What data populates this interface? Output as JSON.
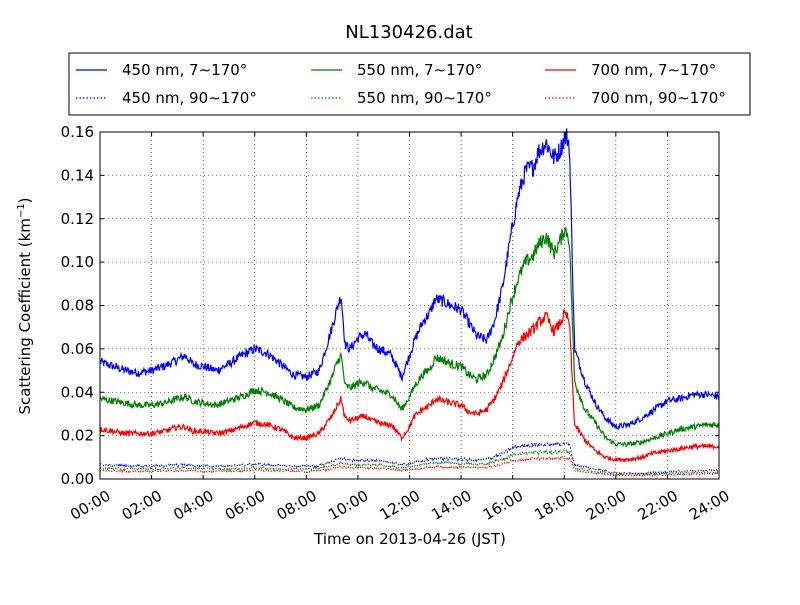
{
  "chart_data": {
    "type": "line",
    "title": "NL130426.dat",
    "xlabel": "Time on 2013-04-26 (JST)",
    "ylabel": "Scattering Coefficient (km",
    "ylabel_sup": "−1",
    "ylabel_close": ")",
    "xlim": [
      0,
      24
    ],
    "ylim": [
      0,
      0.16
    ],
    "grid": true,
    "legend_position": "top",
    "x_tick_values": [
      0,
      2,
      4,
      6,
      8,
      10,
      12,
      14,
      16,
      18,
      20,
      22,
      24
    ],
    "x_tick_labels": [
      "00:00",
      "02:00",
      "04:00",
      "06:00",
      "08:00",
      "10:00",
      "12:00",
      "14:00",
      "16:00",
      "18:00",
      "20:00",
      "22:00",
      "24:00"
    ],
    "y_tick_values": [
      0,
      0.02,
      0.04,
      0.06,
      0.08,
      0.1,
      0.12,
      0.14,
      0.16
    ],
    "y_tick_labels": [
      "0.00",
      "0.02",
      "0.04",
      "0.06",
      "0.08",
      "0.10",
      "0.12",
      "0.14",
      "0.16"
    ],
    "series": [
      {
        "name": "450 nm, 7∼170°",
        "color": "#0000ff",
        "style": "solid",
        "x": [
          0,
          0.5,
          1,
          1.5,
          2,
          2.5,
          3,
          3.3,
          3.6,
          4,
          4.5,
          5,
          5.5,
          6,
          6.5,
          7,
          7.5,
          8,
          8.5,
          8.8,
          9,
          9.2,
          9.35,
          9.5,
          9.7,
          10,
          10.3,
          10.5,
          10.8,
          11,
          11.3,
          11.7,
          12,
          12.2,
          12.5,
          12.8,
          13,
          13.3,
          13.6,
          14,
          14.3,
          14.6,
          15,
          15.3,
          15.6,
          15.9,
          16.2,
          16.5,
          16.8,
          17,
          17.3,
          17.6,
          17.85,
          18,
          18.1,
          18.2,
          18.4,
          18.8,
          19.2,
          19.6,
          20,
          20.5,
          21,
          21.5,
          22,
          22.5,
          23,
          23.5,
          24
        ],
        "y": [
          0.054,
          0.052,
          0.05,
          0.049,
          0.05,
          0.052,
          0.055,
          0.057,
          0.053,
          0.052,
          0.05,
          0.053,
          0.057,
          0.06,
          0.058,
          0.053,
          0.048,
          0.047,
          0.05,
          0.062,
          0.07,
          0.079,
          0.085,
          0.062,
          0.06,
          0.065,
          0.067,
          0.063,
          0.06,
          0.059,
          0.057,
          0.047,
          0.057,
          0.064,
          0.072,
          0.077,
          0.083,
          0.082,
          0.08,
          0.078,
          0.072,
          0.066,
          0.064,
          0.073,
          0.088,
          0.11,
          0.13,
          0.142,
          0.144,
          0.151,
          0.155,
          0.148,
          0.152,
          0.157,
          0.158,
          0.154,
          0.06,
          0.045,
          0.035,
          0.028,
          0.024,
          0.025,
          0.028,
          0.032,
          0.036,
          0.037,
          0.039,
          0.039,
          0.038
        ]
      },
      {
        "name": "550 nm, 7∼170°",
        "color": "#008000",
        "style": "solid",
        "x": [
          0,
          0.5,
          1,
          1.5,
          2,
          2.5,
          3,
          3.3,
          3.6,
          4,
          4.5,
          5,
          5.5,
          6,
          6.5,
          7,
          7.5,
          8,
          8.5,
          8.8,
          9,
          9.2,
          9.35,
          9.5,
          9.7,
          10,
          10.3,
          10.5,
          10.8,
          11,
          11.3,
          11.7,
          12,
          12.2,
          12.5,
          12.8,
          13,
          13.3,
          13.6,
          14,
          14.3,
          14.6,
          15,
          15.3,
          15.6,
          15.9,
          16.2,
          16.5,
          16.8,
          17,
          17.3,
          17.6,
          17.85,
          18,
          18.1,
          18.2,
          18.4,
          18.8,
          19.2,
          19.6,
          20,
          20.5,
          21,
          21.5,
          22,
          22.5,
          23,
          23.5,
          24
        ],
        "y": [
          0.037,
          0.036,
          0.035,
          0.034,
          0.034,
          0.035,
          0.037,
          0.038,
          0.036,
          0.035,
          0.034,
          0.036,
          0.038,
          0.041,
          0.04,
          0.037,
          0.033,
          0.032,
          0.034,
          0.042,
          0.047,
          0.054,
          0.057,
          0.043,
          0.042,
          0.044,
          0.045,
          0.042,
          0.041,
          0.04,
          0.039,
          0.032,
          0.038,
          0.043,
          0.048,
          0.051,
          0.056,
          0.055,
          0.053,
          0.052,
          0.048,
          0.046,
          0.048,
          0.056,
          0.065,
          0.08,
          0.092,
          0.1,
          0.103,
          0.108,
          0.112,
          0.104,
          0.11,
          0.115,
          0.114,
          0.11,
          0.045,
          0.032,
          0.026,
          0.019,
          0.016,
          0.016,
          0.017,
          0.019,
          0.021,
          0.023,
          0.024,
          0.025,
          0.025
        ]
      },
      {
        "name": "700 nm, 7∼170°",
        "color": "#ff0000",
        "style": "solid",
        "x": [
          0,
          0.5,
          1,
          1.5,
          2,
          2.5,
          3,
          3.3,
          3.6,
          4,
          4.5,
          5,
          5.5,
          6,
          6.5,
          7,
          7.5,
          8,
          8.5,
          8.8,
          9,
          9.2,
          9.35,
          9.5,
          9.7,
          10,
          10.3,
          10.5,
          10.8,
          11,
          11.3,
          11.7,
          12,
          12.2,
          12.5,
          12.8,
          13,
          13.3,
          13.6,
          14,
          14.3,
          14.6,
          15,
          15.3,
          15.6,
          15.9,
          16.2,
          16.5,
          16.8,
          17,
          17.3,
          17.6,
          17.85,
          18,
          18.1,
          18.2,
          18.4,
          18.8,
          19.2,
          19.6,
          20,
          20.5,
          21,
          21.5,
          22,
          22.5,
          23,
          23.5,
          24
        ],
        "y": [
          0.023,
          0.022,
          0.021,
          0.021,
          0.021,
          0.022,
          0.024,
          0.024,
          0.022,
          0.022,
          0.021,
          0.022,
          0.024,
          0.026,
          0.025,
          0.023,
          0.019,
          0.019,
          0.021,
          0.026,
          0.029,
          0.034,
          0.037,
          0.028,
          0.027,
          0.028,
          0.029,
          0.027,
          0.026,
          0.025,
          0.025,
          0.019,
          0.024,
          0.029,
          0.032,
          0.034,
          0.037,
          0.036,
          0.035,
          0.034,
          0.031,
          0.03,
          0.032,
          0.037,
          0.044,
          0.053,
          0.063,
          0.066,
          0.069,
          0.072,
          0.075,
          0.068,
          0.072,
          0.076,
          0.075,
          0.072,
          0.025,
          0.018,
          0.013,
          0.01,
          0.009,
          0.009,
          0.01,
          0.012,
          0.013,
          0.014,
          0.015,
          0.015,
          0.015
        ]
      },
      {
        "name": "450 nm, 90∼170°",
        "color": "#0000ff",
        "style": "dotted",
        "x": [
          0,
          1,
          2,
          3,
          4,
          5,
          6,
          7,
          8,
          8.5,
          9,
          9.35,
          9.7,
          10.5,
          11,
          11.7,
          12.5,
          13,
          14,
          14.6,
          15,
          15.6,
          16,
          16.5,
          17,
          17.5,
          18,
          18.2,
          18.4,
          19,
          20,
          21,
          22,
          23,
          24
        ],
        "y": [
          0.0065,
          0.006,
          0.006,
          0.0065,
          0.006,
          0.006,
          0.0068,
          0.0062,
          0.0058,
          0.0062,
          0.008,
          0.0095,
          0.0085,
          0.0085,
          0.0082,
          0.0065,
          0.0085,
          0.0095,
          0.0092,
          0.0085,
          0.0092,
          0.0115,
          0.0145,
          0.0155,
          0.0158,
          0.0158,
          0.0165,
          0.016,
          0.0065,
          0.005,
          0.0028,
          0.0028,
          0.0032,
          0.0038,
          0.004
        ]
      },
      {
        "name": "550 nm, 90∼170°",
        "color": "#008000",
        "style": "dotted",
        "x": [
          0,
          1,
          2,
          3,
          4,
          5,
          6,
          7,
          8,
          8.5,
          9,
          9.35,
          9.7,
          10.5,
          11,
          11.7,
          12.5,
          13,
          14,
          14.6,
          15,
          15.6,
          16,
          16.5,
          17,
          17.5,
          18,
          18.2,
          18.4,
          19,
          20,
          21,
          22,
          23,
          24
        ],
        "y": [
          0.005,
          0.0047,
          0.0047,
          0.005,
          0.0047,
          0.0047,
          0.0052,
          0.0048,
          0.0045,
          0.0048,
          0.0062,
          0.0074,
          0.0066,
          0.0066,
          0.0064,
          0.005,
          0.0066,
          0.0074,
          0.0072,
          0.0066,
          0.0072,
          0.009,
          0.0112,
          0.012,
          0.0122,
          0.0123,
          0.0128,
          0.0124,
          0.005,
          0.0038,
          0.0022,
          0.0022,
          0.0025,
          0.003,
          0.0031
        ]
      },
      {
        "name": "700 nm, 90∼170°",
        "color": "#ff0000",
        "style": "dotted",
        "x": [
          0,
          1,
          2,
          3,
          4,
          5,
          6,
          7,
          8,
          8.5,
          9,
          9.35,
          9.7,
          10.5,
          11,
          11.7,
          12.5,
          13,
          14,
          14.6,
          15,
          15.6,
          16,
          16.5,
          17,
          17.5,
          18,
          18.2,
          18.4,
          19,
          20,
          21,
          22,
          23,
          24
        ],
        "y": [
          0.0038,
          0.0036,
          0.0036,
          0.0038,
          0.0036,
          0.0036,
          0.004,
          0.0037,
          0.0034,
          0.0037,
          0.0048,
          0.0057,
          0.0051,
          0.0051,
          0.0049,
          0.0038,
          0.0051,
          0.0057,
          0.0055,
          0.0051,
          0.0055,
          0.0069,
          0.0086,
          0.0092,
          0.0094,
          0.0095,
          0.0098,
          0.0095,
          0.0038,
          0.0029,
          0.0016,
          0.0016,
          0.0019,
          0.0023,
          0.0024
        ]
      }
    ],
    "legend": [
      {
        "label": "450 nm, 7∼170°",
        "color": "#0000ff",
        "style": "solid"
      },
      {
        "label": "550 nm, 7∼170°",
        "color": "#008000",
        "style": "solid"
      },
      {
        "label": "700 nm, 7∼170°",
        "color": "#ff0000",
        "style": "solid"
      },
      {
        "label": "450 nm, 90∼170°",
        "color": "#0000ff",
        "style": "dotted"
      },
      {
        "label": "550 nm, 90∼170°",
        "color": "#008000",
        "style": "dotted"
      },
      {
        "label": "700 nm, 90∼170°",
        "color": "#ff0000",
        "style": "dotted"
      }
    ]
  }
}
